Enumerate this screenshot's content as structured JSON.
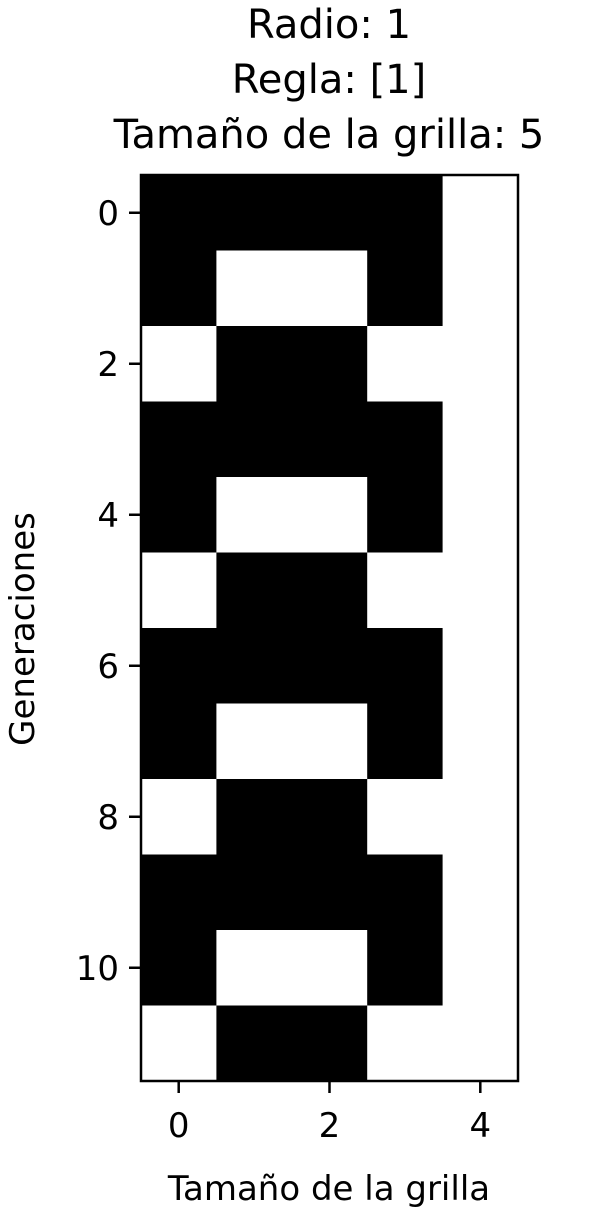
{
  "chart_data": {
    "type": "heatmap",
    "title_lines": [
      "Radio: 1",
      "Regla: [1]",
      "Tamaño de la grilla: 5"
    ],
    "xlabel": "Tamaño de la grilla",
    "ylabel": "Generaciones",
    "x_ticks": [
      "0",
      "2",
      "4"
    ],
    "y_ticks": [
      "0",
      "2",
      "4",
      "6",
      "8",
      "10"
    ],
    "colormap": {
      "1": "#000000",
      "0": "#ffffff"
    },
    "grid": [
      [
        1,
        1,
        1,
        1,
        0
      ],
      [
        1,
        0,
        0,
        1,
        0
      ],
      [
        0,
        1,
        1,
        0,
        0
      ],
      [
        1,
        1,
        1,
        1,
        0
      ],
      [
        1,
        0,
        0,
        1,
        0
      ],
      [
        0,
        1,
        1,
        0,
        0
      ],
      [
        1,
        1,
        1,
        1,
        0
      ],
      [
        1,
        0,
        0,
        1,
        0
      ],
      [
        0,
        1,
        1,
        0,
        0
      ],
      [
        1,
        1,
        1,
        1,
        0
      ],
      [
        1,
        0,
        0,
        1,
        0
      ],
      [
        0,
        1,
        1,
        0,
        0
      ]
    ]
  }
}
